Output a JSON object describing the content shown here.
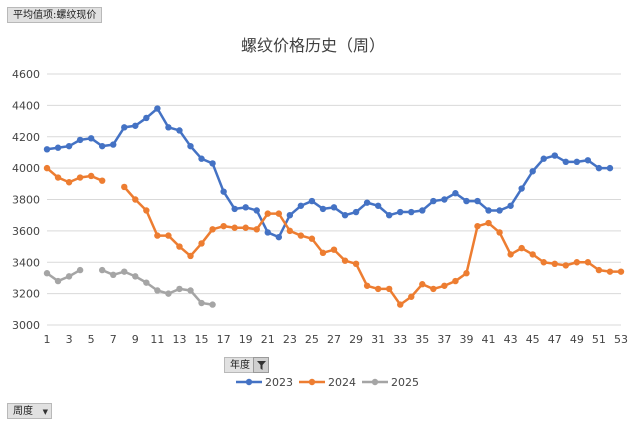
{
  "pivot": {
    "value_field": "平均值项:螺纹现价",
    "legend_field": "年度",
    "axis_field": "周度"
  },
  "chart_data": {
    "type": "line",
    "title": "螺纹价格历史（周）",
    "xlabel": "",
    "ylabel": "",
    "ylim": [
      3000,
      4600
    ],
    "yticks": [
      3000,
      3200,
      3400,
      3600,
      3800,
      4000,
      4200,
      4400,
      4600
    ],
    "xlim": [
      1,
      53
    ],
    "xticks": [
      1,
      3,
      5,
      7,
      9,
      11,
      13,
      15,
      17,
      19,
      21,
      23,
      25,
      27,
      29,
      31,
      33,
      35,
      37,
      39,
      41,
      43,
      45,
      47,
      49,
      51,
      53
    ],
    "grid": "horizontal",
    "legend_position": "bottom",
    "series": [
      {
        "name": "2023",
        "color": "#4472C4",
        "x": [
          1,
          2,
          3,
          4,
          5,
          6,
          7,
          8,
          9,
          10,
          11,
          12,
          13,
          14,
          15,
          16,
          17,
          18,
          19,
          20,
          21,
          22,
          23,
          24,
          25,
          26,
          27,
          28,
          29,
          30,
          31,
          32,
          33,
          34,
          35,
          36,
          37,
          38,
          39,
          40,
          41,
          42,
          43,
          44,
          45,
          46,
          47,
          48,
          49,
          50,
          51,
          52
        ],
        "values": [
          4120,
          4130,
          4140,
          4180,
          4190,
          4140,
          4150,
          4260,
          4270,
          4320,
          4380,
          4260,
          4240,
          4140,
          4060,
          4030,
          3850,
          3740,
          3750,
          3730,
          3590,
          3560,
          3700,
          3760,
          3790,
          3740,
          3750,
          3700,
          3720,
          3780,
          3760,
          3700,
          3720,
          3720,
          3730,
          3790,
          3800,
          3840,
          3790,
          3790,
          3730,
          3730,
          3760,
          3870,
          3980,
          4060,
          4080,
          4040,
          4040,
          4050,
          4000,
          4000
        ]
      },
      {
        "name": "2024",
        "color": "#ED7D31",
        "x": [
          1,
          2,
          3,
          4,
          5,
          6,
          null,
          8,
          9,
          10,
          11,
          12,
          13,
          14,
          15,
          16,
          17,
          18,
          19,
          20,
          21,
          22,
          23,
          24,
          25,
          26,
          27,
          28,
          29,
          30,
          31,
          32,
          33,
          34,
          35,
          36,
          37,
          38,
          39,
          40,
          41,
          42,
          43,
          44,
          45,
          46,
          47,
          48,
          49,
          50,
          51,
          52,
          53
        ],
        "values": [
          4000,
          3940,
          3910,
          3940,
          3950,
          3920,
          null,
          3880,
          3800,
          3730,
          3570,
          3570,
          3500,
          3440,
          3520,
          3610,
          3630,
          3620,
          3620,
          3610,
          3710,
          3710,
          3600,
          3570,
          3550,
          3460,
          3480,
          3410,
          3390,
          3250,
          3230,
          3230,
          3130,
          3180,
          3260,
          3230,
          3250,
          3280,
          3330,
          3630,
          3650,
          3590,
          3450,
          3490,
          3450,
          3400,
          3390,
          3380,
          3400,
          3400,
          3350,
          3340,
          3340
        ]
      },
      {
        "name": "2025",
        "color": "#A5A5A5",
        "x": [
          1,
          2,
          3,
          4,
          null,
          6,
          7,
          8,
          9,
          10,
          11,
          12,
          13,
          14,
          15,
          16
        ],
        "values": [
          3330,
          3280,
          3310,
          3350,
          null,
          3350,
          3320,
          3340,
          3310,
          3270,
          3220,
          3200,
          3230,
          3220,
          3140,
          3130
        ]
      }
    ]
  }
}
